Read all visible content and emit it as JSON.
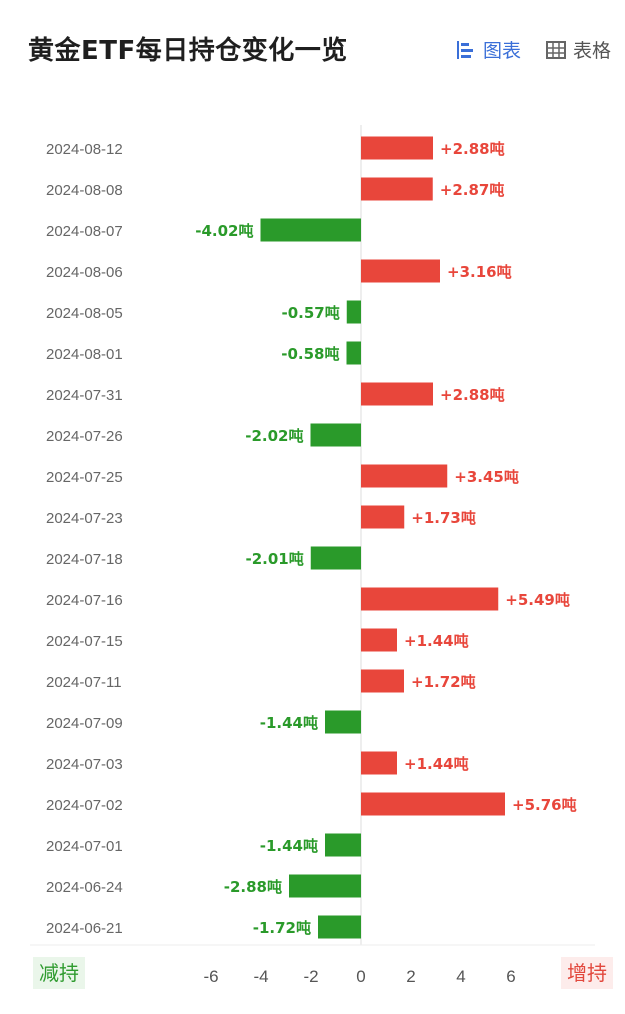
{
  "header": {
    "title": "黄金ETF每日持仓变化一览",
    "chart_tab_label": "图表",
    "table_tab_label": "表格"
  },
  "legend": {
    "decrease_label": "减持",
    "increase_label": "增持"
  },
  "colors": {
    "increase": "#e8463b",
    "decrease": "#2a9a2a",
    "axis_text": "#555555",
    "date_text": "#666666",
    "active_tab": "#3a6fd8"
  },
  "unit_suffix": "吨",
  "chart_data": {
    "type": "bar",
    "orientation": "horizontal",
    "title": "黄金ETF每日持仓变化一览",
    "categories": [
      "2024-08-12",
      "2024-08-08",
      "2024-08-07",
      "2024-08-06",
      "2024-08-05",
      "2024-08-01",
      "2024-07-31",
      "2024-07-26",
      "2024-07-25",
      "2024-07-23",
      "2024-07-18",
      "2024-07-16",
      "2024-07-15",
      "2024-07-11",
      "2024-07-09",
      "2024-07-03",
      "2024-07-02",
      "2024-07-01",
      "2024-06-24",
      "2024-06-21"
    ],
    "values": [
      2.88,
      2.87,
      -4.02,
      3.16,
      -0.57,
      -0.58,
      2.88,
      -2.02,
      3.45,
      1.73,
      -2.01,
      5.49,
      1.44,
      1.72,
      -1.44,
      1.44,
      5.76,
      -1.44,
      -2.88,
      -1.72
    ],
    "data_labels": [
      "+2.88吨",
      "+2.87吨",
      "-4.02吨",
      "+3.16吨",
      "-0.57吨",
      "-0.58吨",
      "+2.88吨",
      "-2.02吨",
      "+3.45吨",
      "+1.73吨",
      "-2.01吨",
      "+5.49吨",
      "+1.44吨",
      "+1.72吨",
      "-1.44吨",
      "+1.44吨",
      "+5.76吨",
      "-1.44吨",
      "-2.88吨",
      "-1.72吨"
    ],
    "xticks": [
      "-6",
      "-4",
      "-2",
      "0",
      "2",
      "4",
      "6"
    ],
    "xlim": [
      -8,
      8.5
    ],
    "xlabel": "",
    "ylabel": "",
    "grid": false
  }
}
